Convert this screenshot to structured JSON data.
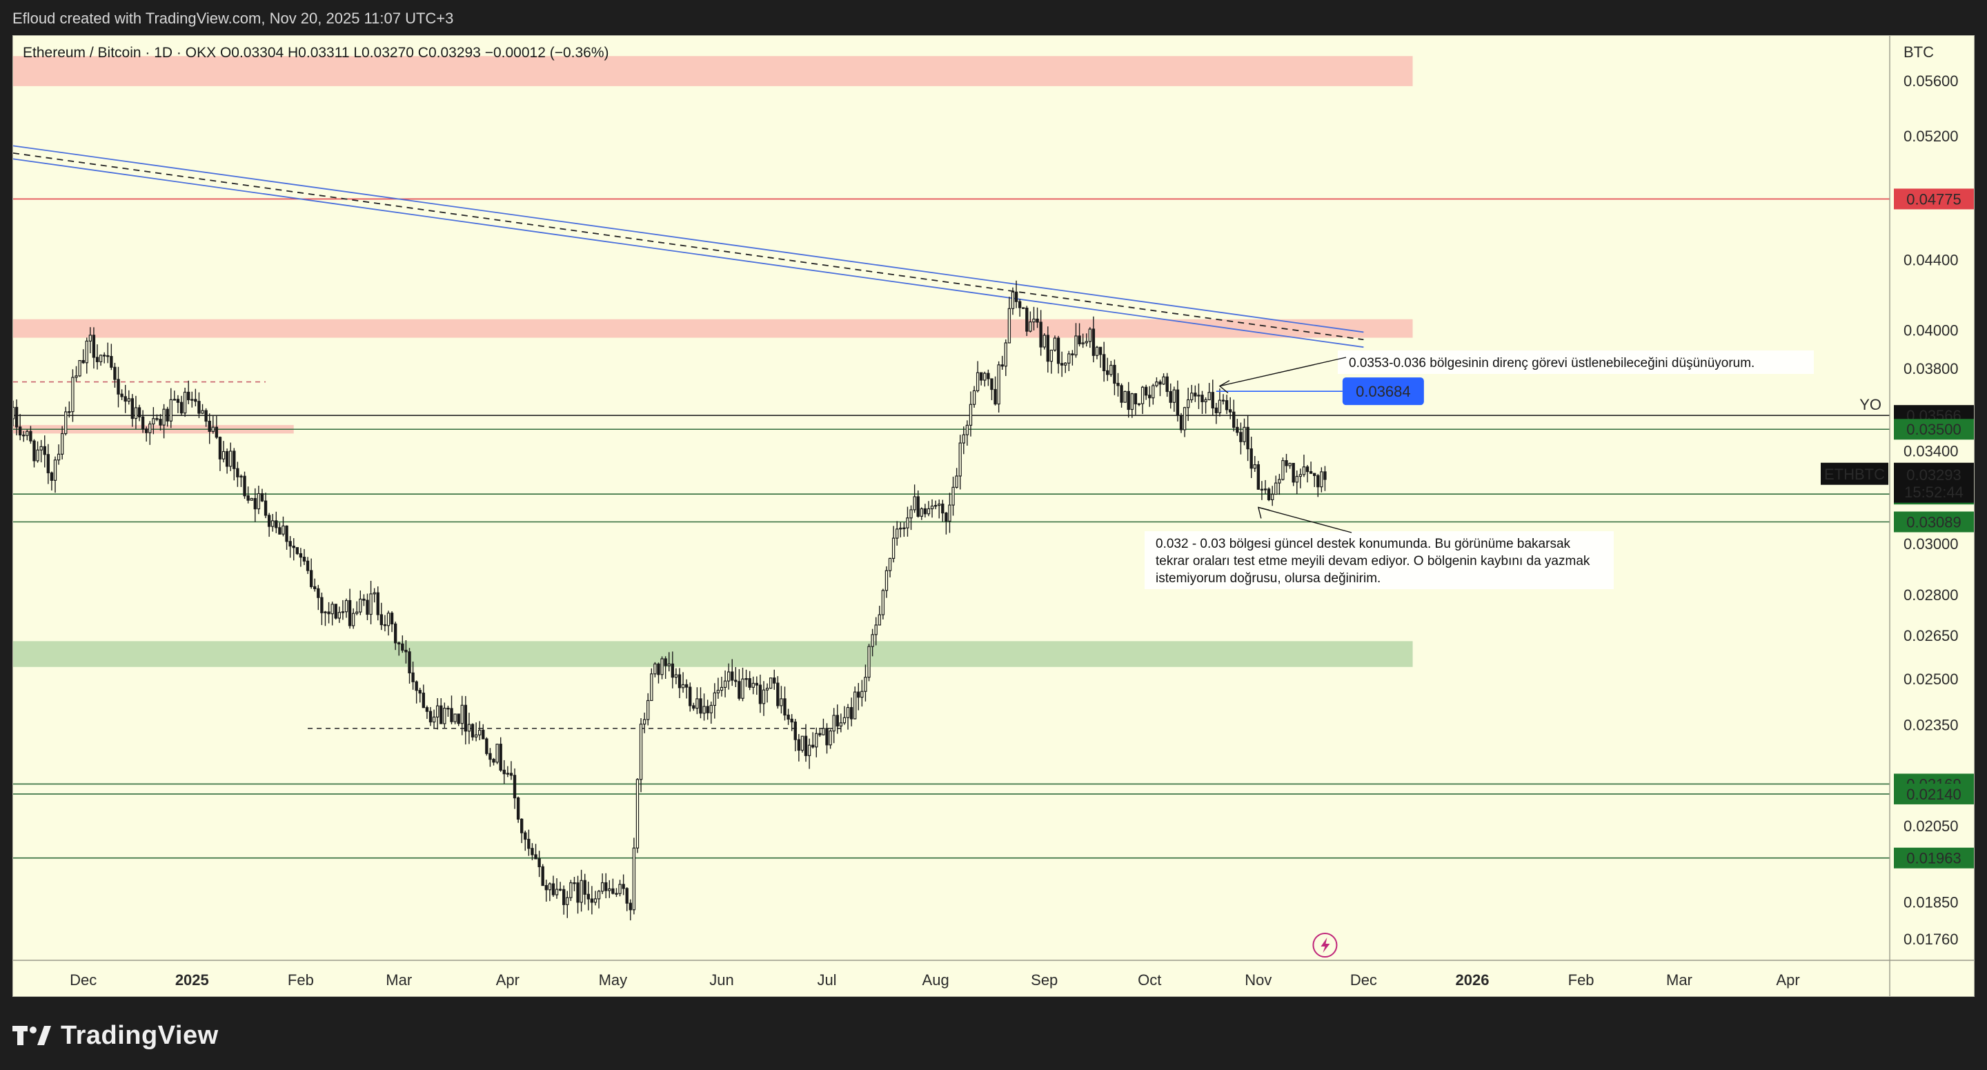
{
  "header": {
    "credit": "Efloud created with TradingView.com, Nov 20, 2025 11:07 UTC+3"
  },
  "footer": {
    "brand": "TradingView"
  },
  "legend": {
    "symbol": "Ethereum / Bitcoin · 1D · OKX",
    "ohlc": "O0.03304  H0.03311  L0.03270  C0.03293  −0.00012 (−0.36%)"
  },
  "colors": {
    "background": "#fcfde1",
    "candle": "#1a1a1a",
    "resistance_zone": "#f9bfb5",
    "support_zone": "#b7d7a8",
    "trend_line": "#4a6fdc",
    "red_level": "#e0424a",
    "green_label": "#1e7a2e",
    "blue_label": "#2962ff"
  },
  "chart_data": {
    "type": "candlestick",
    "symbol": "ETHBTC",
    "currency": "BTC",
    "timeframe": "1D",
    "y_scale": "log",
    "ylim": [
      0.0171,
      0.0595
    ],
    "xlim": [
      "2024-11-11",
      "2026-04-30"
    ],
    "x_ticks": [
      {
        "label": "Dec",
        "date": "2024-12-01",
        "bold": false
      },
      {
        "label": "2025",
        "date": "2025-01-01",
        "bold": true
      },
      {
        "label": "Feb",
        "date": "2025-02-01",
        "bold": false
      },
      {
        "label": "Mar",
        "date": "2025-03-01",
        "bold": false
      },
      {
        "label": "Apr",
        "date": "2025-04-01",
        "bold": false
      },
      {
        "label": "May",
        "date": "2025-05-01",
        "bold": false
      },
      {
        "label": "Jun",
        "date": "2025-06-01",
        "bold": false
      },
      {
        "label": "Jul",
        "date": "2025-07-01",
        "bold": false
      },
      {
        "label": "Aug",
        "date": "2025-08-01",
        "bold": false
      },
      {
        "label": "Sep",
        "date": "2025-09-01",
        "bold": false
      },
      {
        "label": "Oct",
        "date": "2025-10-01",
        "bold": false
      },
      {
        "label": "Nov",
        "date": "2025-11-01",
        "bold": false
      },
      {
        "label": "Dec",
        "date": "2025-12-01",
        "bold": false
      },
      {
        "label": "2026",
        "date": "2026-01-01",
        "bold": true
      },
      {
        "label": "Feb",
        "date": "2026-02-01",
        "bold": false
      },
      {
        "label": "Mar",
        "date": "2026-03-01",
        "bold": false
      },
      {
        "label": "Apr",
        "date": "2026-04-01",
        "bold": false
      }
    ],
    "y_ticks": [
      "0.05600",
      "0.05200",
      "0.04400",
      "0.04000",
      "0.03800",
      "0.03400",
      "0.03000",
      "0.02800",
      "0.02650",
      "0.02500",
      "0.02350",
      "0.02050",
      "0.01850",
      "0.01760"
    ],
    "price_labels": [
      {
        "text": "0.04775",
        "value": 0.04775,
        "style": "red"
      },
      {
        "text": "0.03566",
        "value": 0.03566,
        "style": "black"
      },
      {
        "text": "0.03500",
        "value": 0.035,
        "style": "green"
      },
      {
        "text": "0.03207",
        "value": 0.03207,
        "style": "green"
      },
      {
        "text": "0.03089",
        "value": 0.03089,
        "style": "green"
      },
      {
        "text": "0.02169",
        "value": 0.02169,
        "style": "green"
      },
      {
        "text": "0.02140",
        "value": 0.0214,
        "style": "green"
      },
      {
        "text": "0.01963",
        "value": 0.01963,
        "style": "green"
      }
    ],
    "last_price": {
      "symbol_tag": "ETHBTC",
      "price": "0.03293",
      "value": 0.03293,
      "countdown": "15:52:44"
    },
    "yo_label": "YO",
    "horizontal_levels": [
      {
        "value": 0.04775,
        "color": "red"
      },
      {
        "value": 0.03566,
        "color": "black"
      },
      {
        "value": 0.035,
        "color": "green"
      },
      {
        "value": 0.03207,
        "color": "green"
      },
      {
        "value": 0.03089,
        "color": "green"
      },
      {
        "value": 0.02169,
        "color": "green"
      },
      {
        "value": 0.0214,
        "color": "green"
      },
      {
        "value": 0.01963,
        "color": "green"
      }
    ],
    "zones": [
      {
        "type": "resistance",
        "low": 0.0556,
        "high": 0.0579,
        "start": "2024-11-11",
        "end": "2025-12-15"
      },
      {
        "type": "resistance",
        "low": 0.0396,
        "high": 0.0406,
        "start": "2024-11-11",
        "end": "2025-12-15"
      },
      {
        "type": "resistance",
        "low": 0.0348,
        "high": 0.0352,
        "start": "2024-11-11",
        "end": "2025-01-30"
      },
      {
        "type": "support",
        "low": 0.0254,
        "high": 0.0263,
        "start": "2024-11-11",
        "end": "2025-12-15"
      }
    ],
    "trend_lines": [
      {
        "style": "solid",
        "start": [
          "2024-11-11",
          0.0513
        ],
        "end": [
          "2025-12-01",
          0.0399
        ]
      },
      {
        "style": "solid",
        "start": [
          "2024-11-11",
          0.0504
        ],
        "end": [
          "2025-12-01",
          0.0391
        ]
      },
      {
        "style": "dashed",
        "start": [
          "2024-11-11",
          0.0508
        ],
        "end": [
          "2025-12-01",
          0.0395
        ]
      }
    ],
    "dashed_levels": [
      {
        "value": 0.03731,
        "start": "2024-11-11",
        "end": "2025-01-22",
        "color": "red"
      },
      {
        "value": 0.02338,
        "start": "2025-02-03",
        "end": "2025-07-05",
        "color": "black"
      }
    ],
    "target_line": {
      "value": 0.03684,
      "start": "2025-10-20",
      "end": "2025-11-25",
      "label": "0.03684"
    },
    "annotations": [
      {
        "lines": [
          "0.0353-0.036 bölgesinin direnç görevi üstlenebileceğini düşünüyorum."
        ],
        "arrow_to": [
          "2025-10-21",
          0.0371
        ]
      },
      {
        "lines": [
          "0.032 - 0.03 bölgesi güncel destek konumunda. Bu görünüme bakarsak",
          "tekrar oraları test etme meyili devam ediyor. O bölgenin kaybını da yazmak",
          "istemiyorum doğrusu, olursa değinirim."
        ],
        "arrow_to": [
          "2025-11-01",
          0.0315
        ]
      }
    ],
    "ohlc_keyframes": [
      [
        "2024-11-11",
        0.0355
      ],
      [
        "2024-11-16",
        0.0343
      ],
      [
        "2024-11-22",
        0.033
      ],
      [
        "2024-11-28",
        0.037
      ],
      [
        "2024-12-03",
        0.0393
      ],
      [
        "2024-12-06",
        0.0387
      ],
      [
        "2024-12-10",
        0.0373
      ],
      [
        "2024-12-15",
        0.036
      ],
      [
        "2024-12-20",
        0.035
      ],
      [
        "2024-12-25",
        0.0357
      ],
      [
        "2024-12-31",
        0.0364
      ],
      [
        "2025-01-05",
        0.0351
      ],
      [
        "2025-01-10",
        0.034
      ],
      [
        "2025-01-15",
        0.0325
      ],
      [
        "2025-01-22",
        0.0314
      ],
      [
        "2025-01-28",
        0.0304
      ],
      [
        "2025-02-03",
        0.0287
      ],
      [
        "2025-02-08",
        0.0274
      ],
      [
        "2025-02-15",
        0.0273
      ],
      [
        "2025-02-22",
        0.0278
      ],
      [
        "2025-03-01",
        0.0262
      ],
      [
        "2025-03-06",
        0.0248
      ],
      [
        "2025-03-11",
        0.0238
      ],
      [
        "2025-03-17",
        0.024
      ],
      [
        "2025-03-25",
        0.0231
      ],
      [
        "2025-04-01",
        0.0221
      ],
      [
        "2025-04-06",
        0.0199
      ],
      [
        "2025-04-12",
        0.0189
      ],
      [
        "2025-04-18",
        0.0187
      ],
      [
        "2025-04-24",
        0.0188
      ],
      [
        "2025-05-02",
        0.0187
      ],
      [
        "2025-05-06",
        0.0185
      ],
      [
        "2025-05-09",
        0.0232
      ],
      [
        "2025-05-13",
        0.0255
      ],
      [
        "2025-05-20",
        0.0248
      ],
      [
        "2025-05-27",
        0.0241
      ],
      [
        "2025-06-03",
        0.0248
      ],
      [
        "2025-06-10",
        0.0245
      ],
      [
        "2025-06-16",
        0.0247
      ],
      [
        "2025-06-23",
        0.0228
      ],
      [
        "2025-06-30",
        0.0231
      ],
      [
        "2025-07-07",
        0.0238
      ],
      [
        "2025-07-12",
        0.025
      ],
      [
        "2025-07-18",
        0.029
      ],
      [
        "2025-07-24",
        0.0314
      ],
      [
        "2025-07-31",
        0.0317
      ],
      [
        "2025-08-04",
        0.0306
      ],
      [
        "2025-08-09",
        0.0346
      ],
      [
        "2025-08-13",
        0.038
      ],
      [
        "2025-08-18",
        0.0367
      ],
      [
        "2025-08-23",
        0.0418
      ],
      [
        "2025-08-27",
        0.0405
      ],
      [
        "2025-09-02",
        0.039
      ],
      [
        "2025-09-08",
        0.0387
      ],
      [
        "2025-09-13",
        0.0397
      ],
      [
        "2025-09-18",
        0.0384
      ],
      [
        "2025-09-24",
        0.0363
      ],
      [
        "2025-09-30",
        0.0366
      ],
      [
        "2025-10-06",
        0.0372
      ],
      [
        "2025-10-10",
        0.0355
      ],
      [
        "2025-10-13",
        0.0362
      ],
      [
        "2025-10-18",
        0.0362
      ],
      [
        "2025-10-23",
        0.0362
      ],
      [
        "2025-10-28",
        0.0347
      ],
      [
        "2025-11-02",
        0.0321
      ],
      [
        "2025-11-05",
        0.0322
      ],
      [
        "2025-11-09",
        0.0334
      ],
      [
        "2025-11-14",
        0.0328
      ],
      [
        "2025-11-20",
        0.0329
      ]
    ]
  }
}
